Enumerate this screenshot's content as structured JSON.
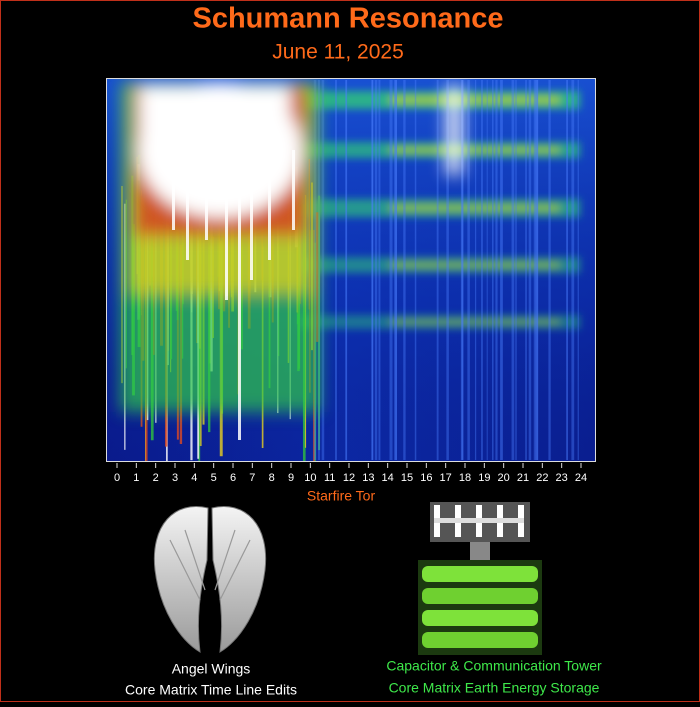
{
  "header": {
    "title": "Schumann Resonance",
    "date": "June 11, 2025"
  },
  "spectrogram": {
    "hour_labels": [
      0,
      1,
      2,
      3,
      4,
      5,
      6,
      7,
      8,
      9,
      10,
      11,
      12,
      13,
      14,
      15,
      16,
      17,
      18,
      19,
      20,
      21,
      22,
      23,
      24
    ],
    "source": "Starfire Tor"
  },
  "left_panel": {
    "lines": [
      "Angel Wings",
      "Core Matrix Time Line Edits"
    ]
  },
  "right_panel": {
    "lines": [
      "Capacitor & Communication Tower",
      "Core Matrix Earth Energy Storage"
    ]
  }
}
